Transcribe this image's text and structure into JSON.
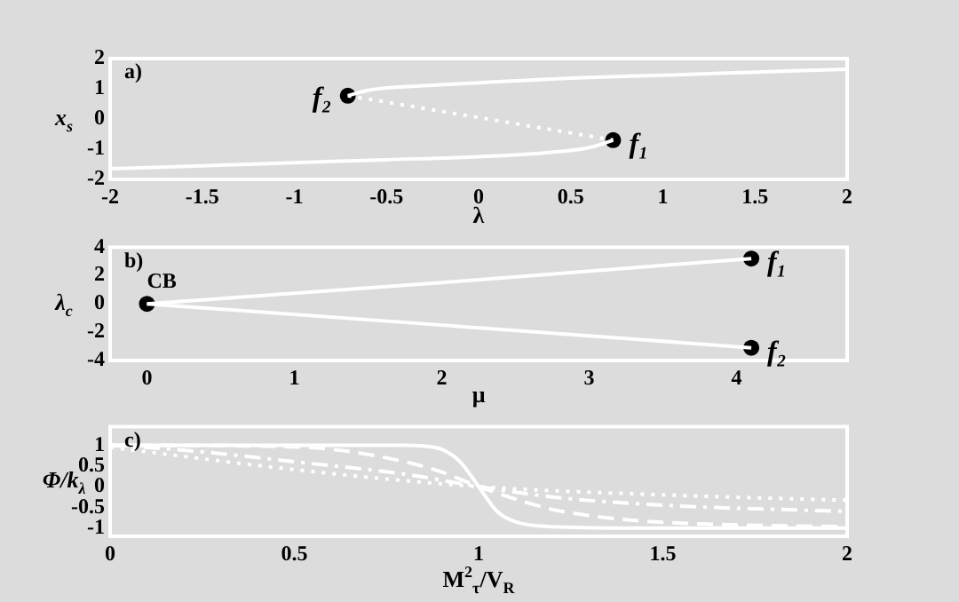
{
  "chart_data": [
    {
      "type": "line",
      "xlabel": "λ",
      "ylabel": "x$_{s}$",
      "xlim": [
        -2,
        2
      ],
      "ylim": [
        -2,
        2
      ],
      "xticks": [
        -2,
        -1.5,
        -1,
        -0.5,
        0,
        0.5,
        1,
        1.5,
        2
      ],
      "yticks": [
        -2,
        -1,
        0,
        1,
        2
      ],
      "annotations": [
        "a)",
        {
          "text": "f₂",
          "x": -0.71,
          "y": 0.77
        },
        {
          "text": "f₁",
          "x": 0.73,
          "y": -0.7
        }
      ],
      "series": [
        {
          "color": "#ffffff",
          "line_style": "solid",
          "x": [
            -0.71,
            -0.6,
            -0.3,
            0,
            0.5,
            1,
            1.5,
            2
          ],
          "values": [
            0.77,
            0.95,
            1.1,
            1.2,
            1.35,
            1.45,
            1.55,
            1.65
          ]
        },
        {
          "color": "#ffffff",
          "line_style": "dotted",
          "x": [
            -0.71,
            0,
            0.73
          ],
          "values": [
            0.77,
            0.05,
            -0.7
          ]
        },
        {
          "color": "#ffffff",
          "line_style": "solid",
          "x": [
            -2,
            -1.5,
            -1,
            -0.5,
            0,
            0.4,
            0.6,
            0.73
          ],
          "values": [
            -1.65,
            -1.55,
            -1.45,
            -1.35,
            -1.25,
            -1.1,
            -0.95,
            -0.7
          ]
        },
        {
          "type": "scatter",
          "color": "#000000",
          "marker": "circle",
          "x": [
            -0.71,
            0.73
          ],
          "values": [
            0.77,
            -0.7
          ]
        }
      ]
    },
    {
      "type": "line",
      "xlabel": "μ",
      "ylabel": "λ$_{c}$",
      "xlim": [
        -0.25,
        4.75
      ],
      "ylim": [
        -4,
        4
      ],
      "xticks": [
        0,
        1,
        2,
        3,
        4
      ],
      "yticks": [
        -4,
        -2,
        0,
        2,
        4
      ],
      "annotations": [
        "b)",
        {
          "text": "CB",
          "x": 0,
          "y": 0
        },
        {
          "text": "f₁",
          "x": 4.1,
          "y": 3.2
        },
        {
          "text": "f₂",
          "x": 4.1,
          "y": -3.1
        }
      ],
      "series": [
        {
          "color": "#ffffff",
          "line_style": "solid",
          "x": [
            0,
            2,
            4.1
          ],
          "values": [
            0,
            1.5,
            3.2
          ]
        },
        {
          "color": "#ffffff",
          "line_style": "solid",
          "x": [
            0,
            2,
            4.1
          ],
          "values": [
            0,
            -1.5,
            -3.1
          ]
        },
        {
          "type": "scatter",
          "color": "#000000",
          "marker": "circle",
          "x": [
            0,
            4.1,
            4.1
          ],
          "values": [
            0,
            3.2,
            -3.1
          ]
        }
      ]
    },
    {
      "type": "line",
      "xlabel": "M$^{2}$$_{τ}$/V$_{R}$",
      "ylabel": "Φ/k$_{λ}$",
      "xlim": [
        0,
        2
      ],
      "ylim": [
        -1.2,
        1.45
      ],
      "xticks": [
        0,
        0.5,
        1,
        1.5,
        2
      ],
      "yticks": [
        -1,
        -0.5,
        0,
        0.5,
        1
      ],
      "annotations": [
        "c)"
      ],
      "series": [
        {
          "color": "#ffffff",
          "line_style": "solid",
          "x": [
            0,
            0.8,
            0.85,
            0.9,
            0.95,
            1,
            1.05,
            1.1,
            1.2,
            1.4,
            2
          ],
          "values": [
            1,
            1,
            0.98,
            0.9,
            0.6,
            0,
            -0.6,
            -0.85,
            -0.97,
            -1,
            -1
          ]
        },
        {
          "color": "#ffffff",
          "line_style": "dashed",
          "x": [
            0,
            0.4,
            0.6,
            0.8,
            0.9,
            1,
            1.1,
            1.2,
            1.4,
            1.6,
            2
          ],
          "values": [
            1,
            0.98,
            0.9,
            0.6,
            0.35,
            0,
            -0.3,
            -0.55,
            -0.8,
            -0.9,
            -0.97
          ]
        },
        {
          "color": "#ffffff",
          "line_style": "dashdot",
          "x": [
            0,
            0.2,
            0.5,
            0.8,
            1,
            1.2,
            1.5,
            2
          ],
          "values": [
            1,
            0.88,
            0.6,
            0.3,
            0,
            -0.25,
            -0.45,
            -0.6
          ]
        },
        {
          "color": "#ffffff",
          "line_style": "dotted",
          "x": [
            0,
            0.5,
            1,
            1.5,
            2
          ],
          "values": [
            0.95,
            0.41,
            0,
            -0.2,
            -0.33
          ]
        }
      ]
    }
  ]
}
